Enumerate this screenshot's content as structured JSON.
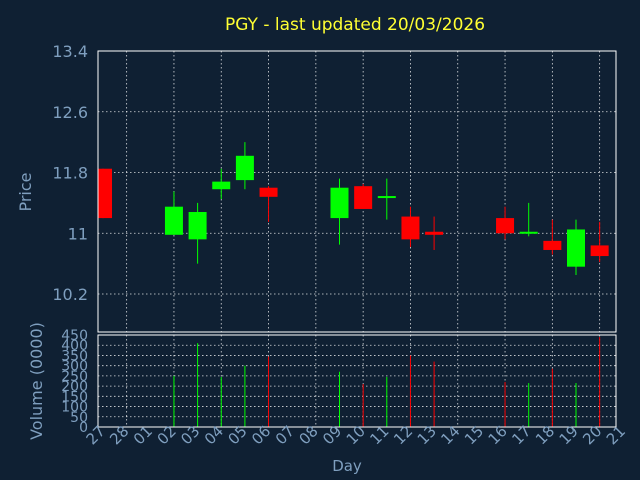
{
  "chart_data": {
    "type": "candlestick",
    "title": "PGY - last updated 20/03/2026",
    "xlabel": "Day",
    "x_tick_labels": [
      "27",
      "28",
      "01",
      "02",
      "03",
      "04",
      "05",
      "06",
      "07",
      "08",
      "09",
      "10",
      "11",
      "12",
      "13",
      "14",
      "15",
      "16",
      "17",
      "18",
      "19",
      "20",
      "21"
    ],
    "price_panel": {
      "ylabel": "Price",
      "ylim": [
        9.7,
        13.4
      ],
      "y_ticks": [
        "13.4",
        "12.6",
        "11.8",
        "11",
        "10.2"
      ],
      "y_tick_values": [
        13.4,
        12.6,
        11.8,
        11.0,
        10.2
      ],
      "grid": true
    },
    "volume_panel": {
      "ylabel": "Volume (0000)",
      "ylim": [
        0,
        450
      ],
      "y_ticks": [
        "450",
        "400",
        "350",
        "300",
        "250",
        "200",
        "150",
        "100",
        "50",
        "0"
      ],
      "y_tick_values": [
        450,
        400,
        350,
        300,
        250,
        200,
        150,
        100,
        50,
        0
      ],
      "grid": true
    },
    "colors": {
      "up": "#00ff00",
      "down": "#ff0000",
      "grid": "#ffffff",
      "text": "#7f9fbf",
      "title": "#ffff33",
      "background": "#0f2033"
    },
    "candles": [
      {
        "day": "27",
        "open": 11.85,
        "high": 11.85,
        "low": 11.2,
        "close": 11.2,
        "volume": 0
      },
      {
        "day": "02",
        "open": 10.98,
        "high": 11.55,
        "low": 10.98,
        "close": 11.35,
        "volume": 250
      },
      {
        "day": "03",
        "open": 10.92,
        "high": 11.4,
        "low": 10.6,
        "close": 11.28,
        "volume": 410
      },
      {
        "day": "04",
        "open": 11.58,
        "high": 11.85,
        "low": 11.45,
        "close": 11.68,
        "volume": 245
      },
      {
        "day": "05",
        "open": 11.7,
        "high": 12.2,
        "low": 11.58,
        "close": 12.02,
        "volume": 300
      },
      {
        "day": "06",
        "open": 11.6,
        "high": 11.62,
        "low": 11.15,
        "close": 11.48,
        "volume": 345
      },
      {
        "day": "09",
        "open": 11.2,
        "high": 11.72,
        "low": 10.85,
        "close": 11.6,
        "volume": 270
      },
      {
        "day": "10",
        "open": 11.62,
        "high": 11.65,
        "low": 11.32,
        "close": 11.32,
        "volume": 210
      },
      {
        "day": "11",
        "open": 11.47,
        "high": 11.72,
        "low": 11.18,
        "close": 11.49,
        "volume": 245
      },
      {
        "day": "12",
        "open": 11.22,
        "high": 11.35,
        "low": 10.82,
        "close": 10.92,
        "volume": 350
      },
      {
        "day": "13",
        "open": 11.02,
        "high": 11.22,
        "low": 10.78,
        "close": 10.98,
        "volume": 320
      },
      {
        "day": "16",
        "open": 11.2,
        "high": 11.35,
        "low": 10.92,
        "close": 11.0,
        "volume": 220
      },
      {
        "day": "17",
        "open": 11.0,
        "high": 11.4,
        "low": 10.96,
        "close": 11.02,
        "volume": 215
      },
      {
        "day": "18",
        "open": 10.9,
        "high": 11.18,
        "low": 10.72,
        "close": 10.78,
        "volume": 285
      },
      {
        "day": "19",
        "open": 10.56,
        "high": 11.18,
        "low": 10.45,
        "close": 11.05,
        "volume": 215
      },
      {
        "day": "20",
        "open": 10.84,
        "high": 11.15,
        "low": 10.62,
        "close": 10.7,
        "volume": 440
      }
    ]
  }
}
